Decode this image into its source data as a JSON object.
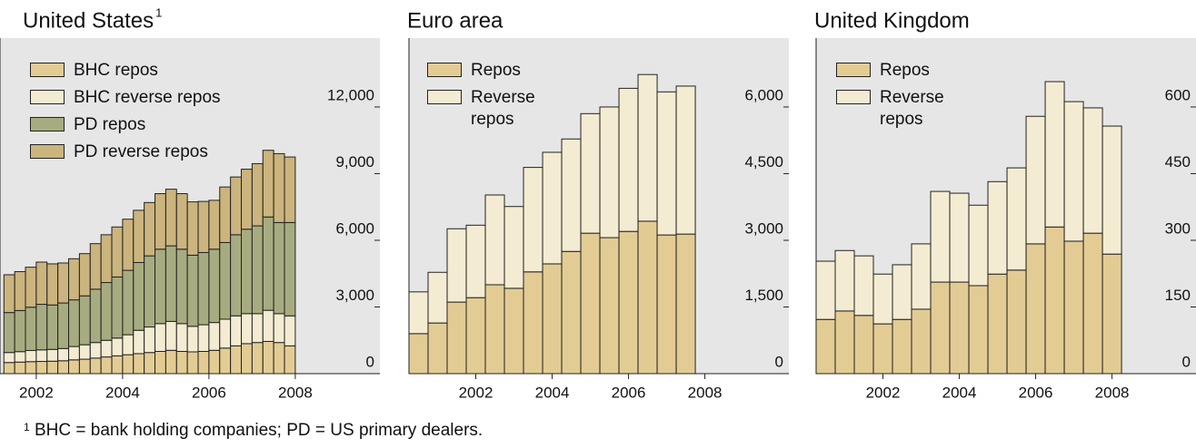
{
  "chart_data": [
    {
      "type": "bar",
      "stacked": true,
      "title": "United States",
      "title_note": "1",
      "x": [
        2001.25,
        2001.5,
        2001.75,
        2002,
        2002.25,
        2002.5,
        2002.75,
        2003,
        2003.25,
        2003.5,
        2003.75,
        2004,
        2004.25,
        2004.5,
        2004.75,
        2005,
        2005.25,
        2005.5,
        2005.75,
        2006,
        2006.25,
        2006.5,
        2006.75,
        2007,
        2007.25,
        2007.5,
        2007.75
      ],
      "series": [
        {
          "name": "BHC repos",
          "color": "#e3cc94",
          "values": [
            500,
            520,
            540,
            550,
            560,
            580,
            620,
            650,
            700,
            750,
            800,
            850,
            900,
            950,
            1000,
            1050,
            1000,
            980,
            1000,
            1050,
            1150,
            1250,
            1350,
            1400,
            1450,
            1400,
            1250
          ]
        },
        {
          "name": "BHC reverse repos",
          "color": "#f4ecd2",
          "values": [
            450,
            470,
            500,
            520,
            530,
            550,
            600,
            650,
            700,
            750,
            800,
            900,
            1050,
            1150,
            1250,
            1300,
            1250,
            1150,
            1200,
            1250,
            1300,
            1350,
            1350,
            1300,
            1400,
            1300,
            1350
          ]
        },
        {
          "name": "PD repos",
          "color": "#a7ac80",
          "values": [
            1800,
            1850,
            1950,
            2050,
            2000,
            2050,
            2100,
            2200,
            2400,
            2600,
            2750,
            2900,
            3050,
            3200,
            3350,
            3400,
            3350,
            3200,
            3250,
            3300,
            3450,
            3650,
            3800,
            3950,
            4200,
            4100,
            4200
          ]
        },
        {
          "name": "PD reverse repos",
          "color": "#cbb47d",
          "values": [
            1700,
            1750,
            1800,
            1900,
            1850,
            1800,
            1850,
            1900,
            2050,
            2150,
            2250,
            2300,
            2350,
            2400,
            2500,
            2550,
            2500,
            2400,
            2300,
            2200,
            2500,
            2600,
            2700,
            2800,
            3000,
            3100,
            2950
          ]
        }
      ],
      "xlim": [
        2001.16,
        2009.96
      ],
      "xticks": [
        2002,
        2004,
        2006,
        2008
      ],
      "ylim": [
        0,
        15100
      ],
      "yticks": [
        0,
        {
          "value": 3000,
          "label": "3,000"
        },
        {
          "value": 6000,
          "label": "6,000"
        },
        {
          "value": 9000,
          "label": "9,000"
        },
        {
          "value": 12000,
          "label": "12,000"
        }
      ]
    },
    {
      "type": "bar",
      "stacked": true,
      "title": "Euro area",
      "x": [
        2000.5,
        2001,
        2001.5,
        2002,
        2002.5,
        2003,
        2003.5,
        2004,
        2004.5,
        2005,
        2005.5,
        2006,
        2006.5,
        2007,
        2007.5
      ],
      "series": [
        {
          "name": "Repos",
          "color": "#e3cc94",
          "values": [
            900,
            1140,
            1610,
            1710,
            2000,
            1920,
            2290,
            2470,
            2750,
            3160,
            3060,
            3200,
            3430,
            3120,
            3140
          ]
        },
        {
          "name": "Reverse repos",
          "color": "#f4ecd2",
          "values": [
            940,
            1140,
            1650,
            1630,
            2020,
            1840,
            2350,
            2510,
            2530,
            2690,
            2940,
            3220,
            3300,
            3220,
            3330
          ]
        }
      ],
      "xlim": [
        2000.25,
        2010.2
      ],
      "xticks": [
        2002,
        2004,
        2006,
        2008
      ],
      "ylim": [
        0,
        7550
      ],
      "yticks": [
        0,
        {
          "value": 1500,
          "label": "1,500"
        },
        {
          "value": 3000,
          "label": "3,000"
        },
        {
          "value": 4500,
          "label": "4,500"
        },
        {
          "value": 6000,
          "label": "6,000"
        }
      ]
    },
    {
      "type": "bar",
      "stacked": true,
      "title": "United Kingdom",
      "x": [
        2000.5,
        2001,
        2001.5,
        2002,
        2002.5,
        2003,
        2003.5,
        2004,
        2004.5,
        2005,
        2005.5,
        2006,
        2006.5,
        2007,
        2007.5,
        2008
      ],
      "series": [
        {
          "name": "Repos",
          "color": "#e3cc94",
          "values": [
            122,
            141,
            131,
            112,
            122,
            145,
            206,
            206,
            198,
            224,
            233,
            292,
            330,
            298,
            316,
            269
          ]
        },
        {
          "name": "Reverse repos",
          "color": "#f4ecd2",
          "values": [
            131,
            136,
            134,
            112,
            123,
            147,
            204,
            200,
            181,
            208,
            230,
            287,
            327,
            314,
            282,
            288
          ]
        }
      ],
      "xlim": [
        2000.25,
        2010.2
      ],
      "xticks": [
        2002,
        2004,
        2006,
        2008
      ],
      "ylim": [
        0,
        755
      ],
      "yticks": [
        0,
        150,
        300,
        450,
        600
      ]
    }
  ],
  "footnote": {
    "marker": "1",
    "text": "BHC = bank holding companies; PD = US primary dealers."
  }
}
